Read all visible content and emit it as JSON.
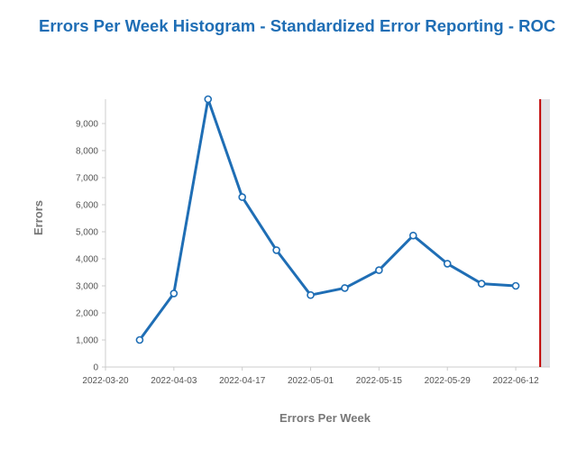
{
  "chart_data": {
    "type": "line",
    "title": "Errors Per Week Histogram - Standardized Error Reporting - ROC",
    "xlabel": "Errors Per Week",
    "ylabel": "Errors",
    "x_ticks": [
      "2022-03-20",
      "2022-04-03",
      "2022-04-17",
      "2022-05-01",
      "2022-05-15",
      "2022-05-29",
      "2022-06-12"
    ],
    "y_ticks": [
      "0",
      "1,000",
      "2,000",
      "3,000",
      "4,000",
      "5,000",
      "6,000",
      "7,000",
      "8,000",
      "9,000"
    ],
    "x_range": [
      "2022-03-20",
      "2022-06-19"
    ],
    "ylim": [
      0,
      9900
    ],
    "series": [
      {
        "color": "#1f6eb5",
        "x": [
          "2022-03-27",
          "2022-04-03",
          "2022-04-10",
          "2022-04-17",
          "2022-04-24",
          "2022-05-01",
          "2022-05-08",
          "2022-05-15",
          "2022-05-22",
          "2022-05-29",
          "2022-06-05",
          "2022-06-12"
        ],
        "y": [
          1000,
          2720,
          9900,
          6280,
          4320,
          2660,
          2920,
          3580,
          4860,
          3820,
          3080,
          3000
        ]
      }
    ],
    "reference_line": {
      "x": "2022-06-17",
      "color": "#c00000"
    },
    "shaded_region": {
      "from": "2022-06-17",
      "to": "2022-06-19",
      "color": "#e0e0e4"
    },
    "grid": false,
    "legend": "none"
  }
}
